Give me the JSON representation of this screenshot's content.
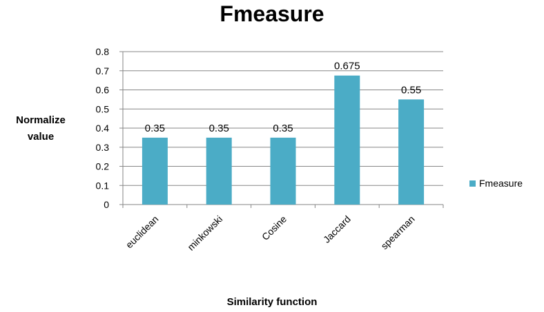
{
  "chart_data": {
    "type": "bar",
    "title": "Fmeasure",
    "ylabel": "Normalize value",
    "xlabel": "Similarity function",
    "categories": [
      "euclidean",
      "minkowski",
      "Cosine",
      "Jaccard",
      "spearman"
    ],
    "series": [
      {
        "name": "Fmeasure",
        "values": [
          0.35,
          0.35,
          0.35,
          0.675,
          0.55
        ],
        "color": "#4BACC6"
      }
    ],
    "data_labels": [
      "0.35",
      "0.35",
      "0.35",
      "0.675",
      "0.55"
    ],
    "ylim": [
      0,
      0.8
    ],
    "yticks": [
      "0",
      "0.1",
      "0.2",
      "0.3",
      "0.4",
      "0.5",
      "0.6",
      "0.7",
      "0.8"
    ],
    "grid": true,
    "legend": "right"
  }
}
